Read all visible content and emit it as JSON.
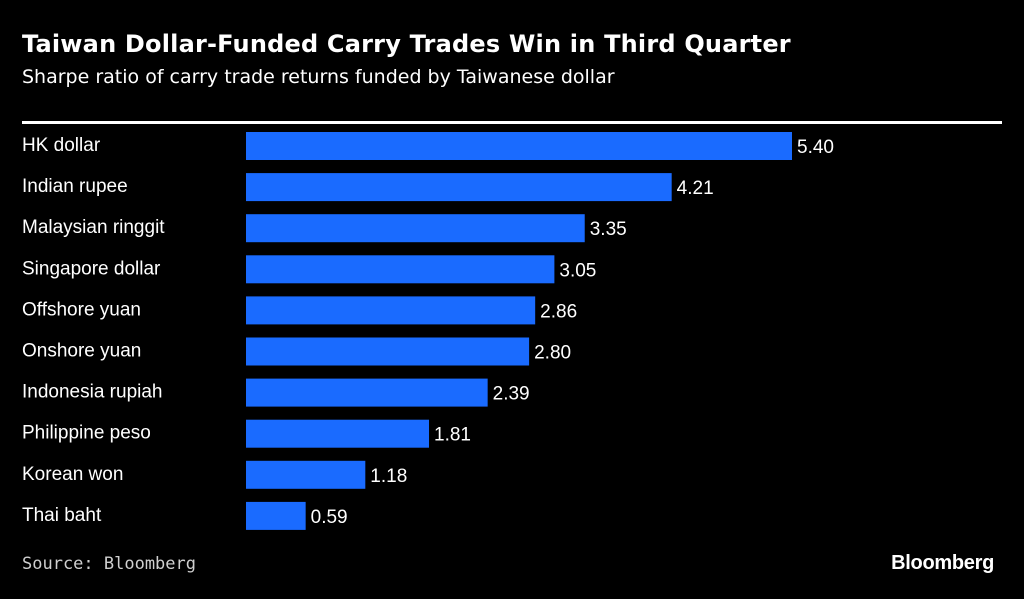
{
  "chart_data": {
    "type": "bar",
    "orientation": "horizontal",
    "title": "Taiwan Dollar-Funded Carry Trades Win in Third Quarter",
    "subtitle": "Sharpe ratio of carry trade returns funded by Taiwanese dollar",
    "categories": [
      "HK dollar",
      "Indian rupee",
      "Malaysian ringgit",
      "Singapore dollar",
      "Offshore yuan",
      "Onshore yuan",
      "Indonesia rupiah",
      "Philippine peso",
      "Korean won",
      "Thai baht"
    ],
    "values": [
      5.4,
      4.21,
      3.35,
      3.05,
      2.86,
      2.8,
      2.39,
      1.81,
      1.18,
      0.59
    ],
    "value_labels": [
      "5.40",
      "4.21",
      "3.35",
      "3.05",
      "2.86",
      "2.80",
      "2.39",
      "1.81",
      "1.18",
      "0.59"
    ],
    "xlim": [
      0,
      5.4
    ],
    "bar_color": "#1a6bff",
    "xlabel": "",
    "ylabel": ""
  },
  "footer": {
    "source": "Source: Bloomberg",
    "brand": "Bloomberg"
  },
  "colors": {
    "background": "#000000",
    "text": "#ffffff",
    "bar": "#1a6bff"
  }
}
